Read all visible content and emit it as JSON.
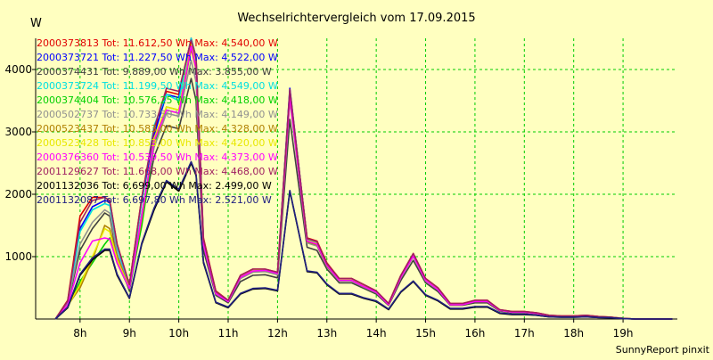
{
  "chart_data": {
    "type": "line",
    "title": "Wechselrichtervergleich vom 17.09.2015",
    "ylabel": "W",
    "xlabel": "",
    "footer": "SunnyReport pinxit",
    "grid": true,
    "legend_position": "top-left",
    "xlim": [
      7.1,
      20.1
    ],
    "ylim": [
      0,
      4500
    ],
    "x_ticks": [
      {
        "value": 8,
        "label": "8h"
      },
      {
        "value": 9,
        "label": "9h"
      },
      {
        "value": 10,
        "label": "10h"
      },
      {
        "value": 11,
        "label": "11h"
      },
      {
        "value": 12,
        "label": "12h"
      },
      {
        "value": 13,
        "label": "13h"
      },
      {
        "value": 14,
        "label": "14h"
      },
      {
        "value": 15,
        "label": "15h"
      },
      {
        "value": 16,
        "label": "16h"
      },
      {
        "value": 17,
        "label": "17h"
      },
      {
        "value": 18,
        "label": "18h"
      },
      {
        "value": 19,
        "label": "19h"
      }
    ],
    "y_ticks": [
      {
        "value": 1000,
        "label": "1000"
      },
      {
        "value": 2000,
        "label": "2000"
      },
      {
        "value": 3000,
        "label": "3000"
      },
      {
        "value": 4000,
        "label": "4000"
      }
    ],
    "x": [
      7.5,
      7.75,
      8.0,
      8.25,
      8.5,
      8.6,
      8.75,
      9.0,
      9.25,
      9.5,
      9.75,
      10.0,
      10.25,
      10.35,
      10.5,
      10.75,
      11.0,
      11.25,
      11.5,
      11.75,
      12.0,
      12.25,
      12.6,
      12.8,
      13.0,
      13.25,
      13.5,
      13.75,
      14.0,
      14.25,
      14.5,
      14.75,
      15.0,
      15.25,
      15.5,
      15.75,
      16.0,
      16.25,
      16.5,
      16.75,
      17.0,
      17.25,
      17.5,
      17.75,
      18.0,
      18.25,
      18.5,
      18.75,
      19.0,
      19.25,
      19.5,
      19.75,
      20.0
    ],
    "series": [
      {
        "name": "2000373813",
        "label": "2000373813 Tot: 11.612,50 Wh Max: 4.540,00 W",
        "color": "#e00000",
        "values": [
          0,
          300,
          1650,
          1950,
          1950,
          1900,
          1200,
          550,
          1950,
          3000,
          3650,
          3600,
          4540,
          4200,
          1300,
          450,
          300,
          700,
          800,
          800,
          750,
          3650,
          1300,
          1250,
          900,
          650,
          650,
          550,
          450,
          250,
          700,
          1050,
          650,
          500,
          250,
          250,
          300,
          300,
          150,
          120,
          120,
          100,
          60,
          50,
          50,
          60,
          40,
          30,
          10,
          0,
          0,
          0,
          0
        ]
      },
      {
        "name": "2000373721",
        "label": "2000373721 Tot: 11.227,50 Wh Max: 4.522,00 W",
        "color": "#0000ff",
        "values": [
          0,
          280,
          1450,
          1800,
          1900,
          1880,
          1150,
          520,
          1900,
          2950,
          3600,
          3550,
          4522,
          4150,
          1250,
          430,
          290,
          680,
          780,
          790,
          740,
          3700,
          1280,
          1230,
          880,
          640,
          640,
          540,
          440,
          240,
          690,
          1040,
          640,
          490,
          240,
          240,
          290,
          290,
          140,
          110,
          110,
          90,
          55,
          45,
          45,
          55,
          35,
          25,
          10,
          0,
          0,
          0,
          0
        ]
      },
      {
        "name": "2000374431",
        "label": "2000374431 Tot: 9.889,00 Wh Max: 3.855,00 W",
        "color": "#404040",
        "values": [
          0,
          240,
          1100,
          1450,
          1700,
          1650,
          1000,
          450,
          1600,
          2600,
          3100,
          3050,
          3855,
          3500,
          1100,
          380,
          260,
          600,
          700,
          710,
          660,
          3200,
          1150,
          1100,
          800,
          580,
          580,
          490,
          400,
          220,
          620,
          940,
          580,
          440,
          220,
          220,
          260,
          260,
          130,
          100,
          100,
          80,
          50,
          40,
          40,
          50,
          30,
          20,
          10,
          0,
          0,
          0,
          0
        ]
      },
      {
        "name": "2000373724",
        "label": "2000373724 Tot: 11.199,50 Wh Max: 4.549,00 W",
        "color": "#00e0e0",
        "values": [
          0,
          270,
          1400,
          1750,
          1850,
          1820,
          1150,
          520,
          1900,
          3100,
          3600,
          3500,
          4549,
          4180,
          1260,
          430,
          290,
          690,
          790,
          790,
          740,
          3650,
          1270,
          1220,
          870,
          640,
          640,
          530,
          440,
          240,
          690,
          1030,
          640,
          490,
          240,
          240,
          290,
          290,
          140,
          110,
          110,
          90,
          55,
          45,
          45,
          55,
          35,
          25,
          10,
          0,
          0,
          0,
          0
        ]
      },
      {
        "name": "2000374404",
        "label": "2000374404 Tot: 10.576,25 Wh Max: 4.418,00 W",
        "color": "#00d000",
        "values": [
          0,
          200,
          600,
          900,
          1200,
          1300,
          900,
          480,
          1500,
          2800,
          3400,
          3350,
          4418,
          4050,
          1200,
          410,
          280,
          660,
          760,
          770,
          720,
          3550,
          1240,
          1190,
          850,
          620,
          620,
          520,
          430,
          230,
          670,
          1010,
          620,
          470,
          230,
          230,
          280,
          280,
          140,
          110,
          110,
          90,
          55,
          45,
          45,
          55,
          35,
          25,
          10,
          0,
          0,
          0,
          0
        ]
      },
      {
        "name": "2000502737",
        "label": "2000502737 Tot: 10.733,50 Wh Max: 4.149,00 W",
        "color": "#909090",
        "values": [
          0,
          250,
          1200,
          1550,
          1750,
          1700,
          1050,
          490,
          1700,
          2750,
          3300,
          3250,
          4149,
          3800,
          1180,
          400,
          280,
          650,
          750,
          760,
          710,
          3500,
          1220,
          1170,
          840,
          610,
          610,
          510,
          420,
          230,
          660,
          1000,
          610,
          470,
          230,
          230,
          280,
          280,
          140,
          110,
          110,
          90,
          55,
          45,
          45,
          55,
          35,
          25,
          10,
          0,
          0,
          0,
          0
        ]
      },
      {
        "name": "2000523437",
        "label": "2000523437 Tot: 10.583,00 Wh Max: 4.328,00 W",
        "color": "#b08000",
        "values": [
          0,
          220,
          500,
          950,
          1500,
          1450,
          1000,
          500,
          1600,
          2850,
          3350,
          3300,
          4328,
          4000,
          1200,
          410,
          290,
          670,
          770,
          780,
          730,
          3550,
          1240,
          1190,
          850,
          620,
          620,
          520,
          430,
          230,
          670,
          1010,
          620,
          480,
          230,
          230,
          280,
          280,
          140,
          110,
          110,
          90,
          55,
          45,
          45,
          55,
          35,
          25,
          10,
          0,
          0,
          0,
          0
        ]
      },
      {
        "name": "2000523428",
        "label": "2000523428 Tot: 10.853,00 Wh Max: 4.420,00 W",
        "color": "#e8e800",
        "values": [
          0,
          210,
          550,
          1000,
          1450,
          1400,
          950,
          500,
          1650,
          2900,
          3400,
          3350,
          4420,
          4080,
          1220,
          420,
          290,
          680,
          780,
          790,
          740,
          3600,
          1260,
          1210,
          870,
          630,
          630,
          530,
          440,
          240,
          680,
          1020,
          630,
          480,
          240,
          240,
          290,
          290,
          140,
          110,
          110,
          90,
          55,
          45,
          45,
          55,
          35,
          25,
          10,
          0,
          0,
          0,
          0
        ]
      },
      {
        "name": "2000376360",
        "label": "2000376360 Tot: 10.539,50 Wh Max: 4.373,00 W",
        "color": "#ff00ff",
        "values": [
          0,
          230,
          900,
          1250,
          1300,
          1280,
          900,
          490,
          1650,
          2850,
          3350,
          3300,
          4373,
          4020,
          1200,
          410,
          280,
          670,
          770,
          780,
          730,
          3550,
          1250,
          1200,
          860,
          620,
          620,
          520,
          430,
          230,
          670,
          1010,
          620,
          470,
          230,
          230,
          280,
          280,
          140,
          110,
          110,
          90,
          55,
          45,
          45,
          55,
          35,
          25,
          10,
          0,
          0,
          0,
          0
        ]
      },
      {
        "name": "2001129627",
        "label": "2001129627 Tot: 11.668,00 Wh Max: 4.468,00 W",
        "color": "#a02060",
        "values": [
          0,
          290,
          1550,
          1900,
          1950,
          1900,
          1200,
          550,
          1950,
          3050,
          3700,
          3650,
          4468,
          4180,
          1280,
          440,
          300,
          700,
          800,
          800,
          750,
          3680,
          1290,
          1240,
          890,
          650,
          650,
          550,
          450,
          250,
          700,
          1050,
          650,
          500,
          250,
          250,
          300,
          300,
          150,
          120,
          120,
          100,
          60,
          50,
          50,
          60,
          40,
          30,
          10,
          0,
          0,
          0,
          0
        ]
      },
      {
        "name": "2001132036",
        "label": "2001132036 Tot: 6.699,00 Wh Max: 2.499,00 W",
        "color": "#000000",
        "values": [
          0,
          180,
          700,
          950,
          1100,
          1100,
          700,
          330,
          1200,
          1750,
          2200,
          2050,
          2499,
          2300,
          900,
          260,
          180,
          400,
          480,
          490,
          450,
          2050,
          760,
          740,
          550,
          400,
          400,
          330,
          280,
          150,
          430,
          600,
          380,
          290,
          160,
          160,
          190,
          190,
          90,
          70,
          70,
          60,
          35,
          30,
          30,
          35,
          25,
          20,
          5,
          0,
          0,
          0,
          0
        ]
      },
      {
        "name": "2001132087",
        "label": "2001132087 Tot: 6.697,80 Wh Max: 2.521,00 W",
        "color": "#202080",
        "values": [
          0,
          190,
          720,
          980,
          1120,
          1120,
          720,
          340,
          1220,
          1780,
          2220,
          2080,
          2521,
          2320,
          920,
          270,
          190,
          410,
          490,
          500,
          460,
          2060,
          770,
          750,
          560,
          410,
          410,
          340,
          290,
          160,
          440,
          610,
          390,
          300,
          170,
          170,
          200,
          200,
          100,
          80,
          80,
          60,
          35,
          30,
          30,
          35,
          25,
          20,
          5,
          0,
          0,
          0,
          0
        ]
      }
    ]
  }
}
